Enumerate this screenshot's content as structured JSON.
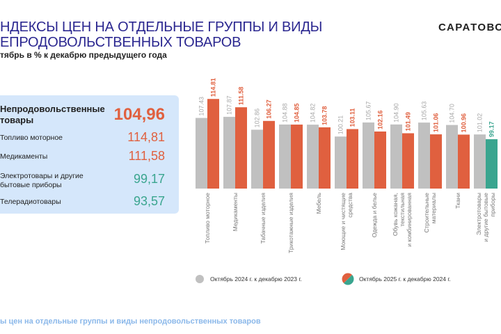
{
  "header": {
    "title_line1": "НДЕКСЫ ЦЕН НА ОТДЕЛЬНЫЕ ГРУППЫ И ВИДЫ",
    "title_line2": "ЕПРОДОВОЛЬСТВЕННЫХ ТОВАРОВ",
    "subtitle": "тябрь в % к декабрю предыдущего года",
    "logo": "САРАТОВС"
  },
  "panel": {
    "main": {
      "label": "Непродовольственные товары",
      "value": "104,96"
    },
    "items": [
      {
        "label": "Топливо моторное",
        "value": "114,81",
        "color": "#e0603f"
      },
      {
        "label": "Медикаменты",
        "value": "111,58",
        "color": "#e0603f"
      },
      {
        "label": "Электротовары и другие бытовые приборы",
        "value": "99,17",
        "color": "#3aa58f"
      },
      {
        "label": "Телерадиотовары",
        "value": "93,57",
        "color": "#3aa58f"
      }
    ]
  },
  "footer": "ы цен на отдельные группы и виды непродовольственных товаров",
  "colors": {
    "gray": "#c0c0c0",
    "orange": "#e0603f",
    "teal": "#3aa58f"
  },
  "chart_data": {
    "type": "bar",
    "categories": [
      "Топливо моторное",
      "Медикаменты",
      "Табачные изделия",
      "Трикотажные изделия",
      "Мебель",
      "Моющие и чистящие средства",
      "Одежда и белье",
      "Обувь кожаная, текстильная и комбинированная",
      "Строительные материалы",
      "Ткани",
      "Электротовары и другие бытовые приборы"
    ],
    "series": [
      {
        "name": "Октябрь 2024 г. к декабрю 2023 г.",
        "values": [
          107.43,
          107.87,
          102.86,
          104.88,
          104.82,
          100.21,
          105.67,
          104.9,
          105.63,
          104.7,
          101.02
        ],
        "labels": [
          "107.43",
          "107.87",
          "102.86",
          "104.88",
          "104.82",
          "100.21",
          "105.67",
          "104.90",
          "105.63",
          "104.70",
          "101.02"
        ]
      },
      {
        "name": "Октябрь 2025 г. к декабрю 2024 г.",
        "values": [
          114.81,
          111.58,
          106.27,
          104.85,
          103.78,
          103.11,
          102.16,
          101.49,
          101.06,
          100.96,
          99.17
        ],
        "labels": [
          "114.81",
          "111.58",
          "106.27",
          "104.85",
          "103.78",
          "103.11",
          "102.16",
          "101.49",
          "101.06",
          "100.96",
          "99.17"
        ]
      }
    ],
    "ylim": [
      80,
      116
    ],
    "grid": false,
    "legend_placement": "bottom"
  }
}
